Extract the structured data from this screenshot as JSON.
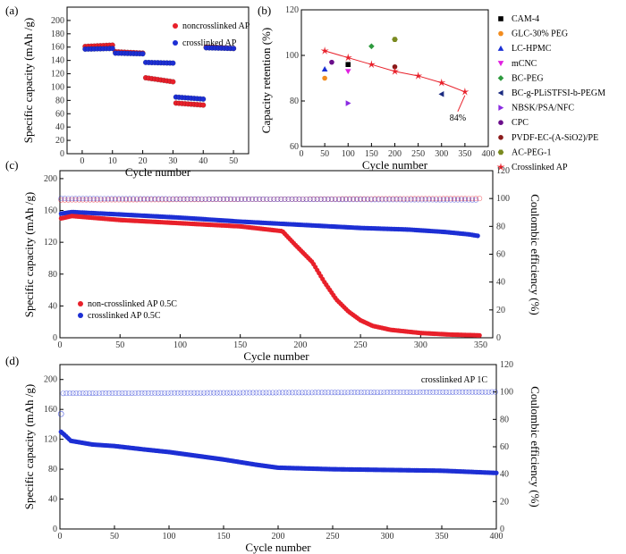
{
  "panel_labels": {
    "a": "(a)",
    "b": "(b)",
    "c": "(c)",
    "d": "(d)"
  },
  "colors": {
    "red": "#e8202a",
    "blue": "#1d2fd4",
    "axis": "#000000"
  },
  "chart_data": [
    {
      "id": "a",
      "type": "scatter",
      "xlabel": "Cycle number",
      "ylabel": "Specific capacity (mAh /g)",
      "xlim": [
        -5,
        55
      ],
      "ylim": [
        0,
        220
      ],
      "xticks": [
        0,
        10,
        20,
        30,
        40,
        50
      ],
      "yticks": [
        0,
        20,
        40,
        60,
        80,
        100,
        120,
        140,
        160,
        180,
        200
      ],
      "legend_position": "top-right",
      "series": [
        {
          "name": "noncrosslinked AP",
          "color": "#e8202a",
          "segments": [
            {
              "x_start": 1,
              "x_end": 10,
              "y_start": 161,
              "y_end": 163
            },
            {
              "x_start": 11,
              "x_end": 20,
              "y_start": 153,
              "y_end": 151
            },
            {
              "x_start": 21,
              "x_end": 30,
              "y_start": 114,
              "y_end": 108
            },
            {
              "x_start": 31,
              "x_end": 40,
              "y_start": 76,
              "y_end": 73
            },
            {
              "x_start": 41,
              "x_end": 50,
              "y_start": 160,
              "y_end": 158
            }
          ]
        },
        {
          "name": "crosslinked AP",
          "color": "#1d2fd4",
          "segments": [
            {
              "x_start": 1,
              "x_end": 10,
              "y_start": 157,
              "y_end": 158
            },
            {
              "x_start": 11,
              "x_end": 20,
              "y_start": 151,
              "y_end": 150
            },
            {
              "x_start": 21,
              "x_end": 30,
              "y_start": 137,
              "y_end": 136
            },
            {
              "x_start": 31,
              "x_end": 40,
              "y_start": 85,
              "y_end": 82
            },
            {
              "x_start": 41,
              "x_end": 50,
              "y_start": 159,
              "y_end": 158
            }
          ]
        }
      ]
    },
    {
      "id": "b",
      "type": "scatter",
      "xlabel": "Cycle number",
      "ylabel": "Capacity retention (%)",
      "xlim": [
        0,
        400
      ],
      "ylim": [
        60,
        120
      ],
      "xticks": [
        0,
        50,
        100,
        150,
        200,
        250,
        300,
        350,
        400
      ],
      "yticks": [
        60,
        80,
        100,
        120
      ],
      "legend_position": "outside-right",
      "annotation": {
        "text": "84%",
        "x": 350,
        "y": 84
      },
      "series": [
        {
          "name": "CAM-4",
          "marker": "square",
          "color": "#000000",
          "points": [
            [
              100,
              96
            ]
          ]
        },
        {
          "name": "GLC-30% PEG",
          "marker": "circle",
          "color": "#f28c1e",
          "points": [
            [
              50,
              90
            ]
          ]
        },
        {
          "name": "LC-HPMC",
          "marker": "triangle-up",
          "color": "#1a2fd4",
          "points": [
            [
              50,
              94
            ]
          ]
        },
        {
          "name": "mCNC",
          "marker": "triangle-down",
          "color": "#e020e0",
          "points": [
            [
              100,
              93
            ]
          ]
        },
        {
          "name": "BC-PEG",
          "marker": "diamond",
          "color": "#2e9a3e",
          "points": [
            [
              150,
              104
            ]
          ]
        },
        {
          "name": "BC-g-PLiSTFSI-b-PEGM",
          "marker": "triangle-left",
          "color": "#1a2a80",
          "points": [
            [
              300,
              83
            ]
          ]
        },
        {
          "name": "NBSK/PSA/NFC",
          "marker": "triangle-right",
          "color": "#8a2be2",
          "points": [
            [
              100,
              79
            ]
          ]
        },
        {
          "name": "CPC",
          "marker": "circle",
          "color": "#6a0d8a",
          "points": [
            [
              65,
              97
            ]
          ]
        },
        {
          "name": "PVDF-EC-(A-SiO2)/PE",
          "marker": "circle",
          "color": "#8b1a1a",
          "points": [
            [
              200,
              95
            ]
          ]
        },
        {
          "name": "AC-PEG-1",
          "marker": "hexagon",
          "color": "#7a8a20",
          "points": [
            [
              200,
              107
            ]
          ]
        },
        {
          "name": "Crosslinked AP",
          "marker": "star",
          "color": "#e8202a",
          "points": [
            [
              50,
              102
            ],
            [
              100,
              99
            ],
            [
              150,
              96
            ],
            [
              200,
              93
            ],
            [
              250,
              91
            ],
            [
              300,
              88
            ],
            [
              350,
              84
            ]
          ]
        }
      ]
    },
    {
      "id": "c",
      "type": "scatter",
      "xlabel": "Cycle number",
      "ylabel": "Specific capacity (mAh /g)",
      "y2label": "Coulombic efficiency (%)",
      "xlim": [
        0,
        360
      ],
      "ylim": [
        0,
        210
      ],
      "y2lim": [
        0,
        120
      ],
      "xticks": [
        0,
        50,
        100,
        150,
        200,
        250,
        300,
        350
      ],
      "yticks": [
        0,
        40,
        80,
        120,
        160,
        200
      ],
      "y2ticks": [
        0,
        20,
        40,
        60,
        80,
        100,
        120
      ],
      "legend_position": "bottom-left",
      "series": [
        {
          "name": "non-crosslinked AP 0.5C",
          "color": "#e8202a",
          "axis": "left",
          "keypoints": [
            [
              1,
              150
            ],
            [
              10,
              153
            ],
            [
              50,
              148
            ],
            [
              100,
              144
            ],
            [
              150,
              140
            ],
            [
              185,
              134
            ],
            [
              195,
              118
            ],
            [
              210,
              95
            ],
            [
              220,
              70
            ],
            [
              230,
              48
            ],
            [
              240,
              33
            ],
            [
              250,
              22
            ],
            [
              260,
              15
            ],
            [
              275,
              10
            ],
            [
              300,
              6
            ],
            [
              325,
              4
            ],
            [
              350,
              3
            ]
          ]
        },
        {
          "name": "crosslinked AP 0.5C",
          "color": "#1d2fd4",
          "axis": "left",
          "keypoints": [
            [
              1,
              156
            ],
            [
              10,
              158
            ],
            [
              50,
              155
            ],
            [
              100,
              151
            ],
            [
              150,
              146
            ],
            [
              200,
              142
            ],
            [
              250,
              138
            ],
            [
              290,
              136
            ],
            [
              320,
              133
            ],
            [
              340,
              130
            ],
            [
              348,
              128
            ]
          ]
        },
        {
          "name": "",
          "color": "#e8202a",
          "axis": "right",
          "open": true,
          "keypoints": [
            [
              1,
              99
            ],
            [
              350,
              100
            ]
          ]
        },
        {
          "name": "",
          "color": "#1d2fd4",
          "axis": "right",
          "open": true,
          "keypoints": [
            [
              1,
              100
            ],
            [
              348,
              99
            ]
          ]
        }
      ]
    },
    {
      "id": "d",
      "type": "scatter",
      "xlabel": "Cycle number",
      "ylabel": "Specific capacity (mAh /g)",
      "y2label": "Coulombic efficiency (%)",
      "xlim": [
        0,
        400
      ],
      "ylim": [
        0,
        220
      ],
      "y2lim": [
        0,
        120
      ],
      "xticks": [
        0,
        50,
        100,
        150,
        200,
        250,
        300,
        350,
        400
      ],
      "yticks": [
        0,
        40,
        80,
        120,
        160,
        200
      ],
      "y2ticks": [
        0,
        20,
        40,
        60,
        80,
        100,
        120
      ],
      "legend_position": "top-right",
      "legend_text": "crosslinked AP   1C",
      "series": [
        {
          "name": "crosslinked AP 1C",
          "color": "#1d2fd4",
          "axis": "left",
          "keypoints": [
            [
              1,
              130
            ],
            [
              5,
              125
            ],
            [
              10,
              118
            ],
            [
              30,
              113
            ],
            [
              50,
              111
            ],
            [
              80,
              106
            ],
            [
              100,
              103
            ],
            [
              150,
              93
            ],
            [
              180,
              86
            ],
            [
              200,
              82
            ],
            [
              250,
              80
            ],
            [
              300,
              79
            ],
            [
              350,
              78
            ],
            [
              400,
              75
            ]
          ]
        },
        {
          "name": "",
          "color": "#1d2fd4",
          "axis": "right",
          "open": true,
          "keypoints": [
            [
              1,
              99
            ],
            [
              400,
              100
            ]
          ]
        }
      ]
    }
  ]
}
